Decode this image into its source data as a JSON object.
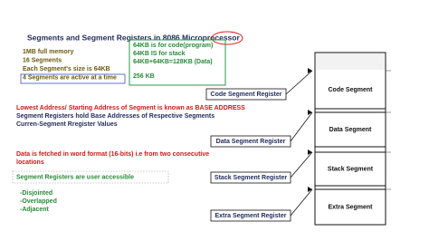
{
  "title": "Segments and Segment Registers in  8086 Microprocessor",
  "facts": [
    "1MB  full memory",
    "16 Segments",
    "Each Segment's size is 64KB",
    "4 Segments are active at a time"
  ],
  "sizes": [
    "64KB is for code(program)",
    "64KB IS for stack",
    "64KB+64KB=128KB (Data)",
    "256 KB"
  ],
  "base_notes": [
    "Lowest Address/ Starting Address of Segment is known as BASE ADDRESS",
    "Segment Registers hold Base Addresses of Respective Segments",
    "Curren-Segment  Rregister Values"
  ],
  "fetch_note": [
    "Data is fetched in word format (16-bits) i.e from two consecutive",
    "locations"
  ],
  "access_note": "Segment Registers are user accessible",
  "arrangements": [
    "-Disjointed",
    "-Overlapped",
    "-Adjacent"
  ],
  "registers": [
    "Code Segment Register",
    "Data Segment Register",
    "Stack Segment Register",
    "Extra Segment Register"
  ],
  "segments": [
    "Code Segment",
    "Data Segment",
    "Stack Segment",
    "Extra Segment"
  ]
}
